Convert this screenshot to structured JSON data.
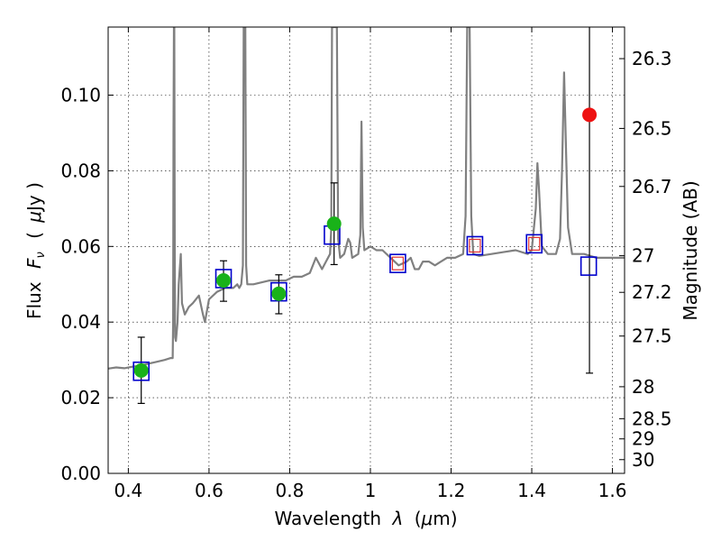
{
  "chart_data": {
    "type": "scatter",
    "xlabel_text": "Wavelength",
    "xlabel_symbol": "λ",
    "xlabel_unit_pre": "(",
    "xlabel_unit_mu": "μ",
    "xlabel_unit_post": "m)",
    "ylabel_text": "Flux",
    "ylabel_symbol": "F",
    "ylabel_sub": "ν",
    "ylabel_unit_pre": "(",
    "ylabel_unit_mu": "μ",
    "ylabel_unit_post": "Jy )",
    "y2label": "Magnitude (AB)",
    "xlim": [
      0.35,
      1.63
    ],
    "ylim": [
      0.0,
      0.118
    ],
    "grid": true,
    "x_ticks": [
      {
        "value": 0.4,
        "label": "0.4"
      },
      {
        "value": 0.6,
        "label": "0.6"
      },
      {
        "value": 0.8,
        "label": "0.8"
      },
      {
        "value": 1.0,
        "label": "1"
      },
      {
        "value": 1.2,
        "label": "1.2"
      },
      {
        "value": 1.4,
        "label": "1.4"
      },
      {
        "value": 1.6,
        "label": "1.6"
      }
    ],
    "y_ticks": [
      {
        "value": 0.0,
        "label": "0.00"
      },
      {
        "value": 0.02,
        "label": "0.02"
      },
      {
        "value": 0.04,
        "label": "0.04"
      },
      {
        "value": 0.06,
        "label": "0.06"
      },
      {
        "value": 0.08,
        "label": "0.08"
      },
      {
        "value": 0.1,
        "label": "0.10"
      }
    ],
    "y2_ticks": [
      {
        "value": 26.3,
        "label": "26.3"
      },
      {
        "value": 26.5,
        "label": "26.5"
      },
      {
        "value": 26.7,
        "label": "26.7"
      },
      {
        "value": 27.0,
        "label": "27"
      },
      {
        "value": 27.2,
        "label": "27.2"
      },
      {
        "value": 27.5,
        "label": "27.5"
      },
      {
        "value": 28.0,
        "label": "28"
      },
      {
        "value": 28.5,
        "label": "28.5"
      },
      {
        "value": 29.0,
        "label": "29"
      },
      {
        "value": 30.0,
        "label": "30"
      }
    ],
    "model_spectrum": {
      "color": "#808080",
      "points": [
        [
          0.35,
          0.0277
        ],
        [
          0.37,
          0.028
        ],
        [
          0.39,
          0.0278
        ],
        [
          0.41,
          0.0282
        ],
        [
          0.43,
          0.0285
        ],
        [
          0.45,
          0.029
        ],
        [
          0.47,
          0.0295
        ],
        [
          0.49,
          0.03
        ],
        [
          0.505,
          0.0305
        ],
        [
          0.51,
          0.0305
        ],
        [
          0.511,
          0.04
        ],
        [
          0.512,
          0.09
        ],
        [
          0.513,
          0.118
        ],
        [
          0.514,
          0.118
        ],
        [
          0.515,
          0.06
        ],
        [
          0.516,
          0.036
        ],
        [
          0.518,
          0.035
        ],
        [
          0.522,
          0.04
        ],
        [
          0.525,
          0.05
        ],
        [
          0.53,
          0.058
        ],
        [
          0.533,
          0.045
        ],
        [
          0.54,
          0.042
        ],
        [
          0.55,
          0.044
        ],
        [
          0.56,
          0.045
        ],
        [
          0.575,
          0.047
        ],
        [
          0.585,
          0.042
        ],
        [
          0.59,
          0.04
        ],
        [
          0.6,
          0.046
        ],
        [
          0.62,
          0.048
        ],
        [
          0.64,
          0.049
        ],
        [
          0.66,
          0.049
        ],
        [
          0.67,
          0.05
        ],
        [
          0.675,
          0.049
        ],
        [
          0.68,
          0.05
        ],
        [
          0.684,
          0.055
        ],
        [
          0.686,
          0.118
        ],
        [
          0.69,
          0.118
        ],
        [
          0.692,
          0.055
        ],
        [
          0.695,
          0.05
        ],
        [
          0.71,
          0.05
        ],
        [
          0.73,
          0.0505
        ],
        [
          0.75,
          0.051
        ],
        [
          0.77,
          0.051
        ],
        [
          0.79,
          0.051
        ],
        [
          0.81,
          0.052
        ],
        [
          0.83,
          0.052
        ],
        [
          0.85,
          0.053
        ],
        [
          0.865,
          0.057
        ],
        [
          0.87,
          0.056
        ],
        [
          0.88,
          0.054
        ],
        [
          0.89,
          0.056
        ],
        [
          0.9,
          0.058
        ],
        [
          0.903,
          0.065
        ],
        [
          0.905,
          0.118
        ],
        [
          0.911,
          0.118
        ],
        [
          0.913,
          0.118
        ],
        [
          0.917,
          0.118
        ],
        [
          0.92,
          0.062
        ],
        [
          0.925,
          0.057
        ],
        [
          0.935,
          0.058
        ],
        [
          0.945,
          0.062
        ],
        [
          0.95,
          0.061
        ],
        [
          0.955,
          0.057
        ],
        [
          0.97,
          0.058
        ],
        [
          0.975,
          0.063
        ],
        [
          0.978,
          0.093
        ],
        [
          0.981,
          0.065
        ],
        [
          0.985,
          0.059
        ],
        [
          1.0,
          0.06
        ],
        [
          1.015,
          0.059
        ],
        [
          1.03,
          0.059
        ],
        [
          1.05,
          0.057
        ],
        [
          1.07,
          0.055
        ],
        [
          1.09,
          0.056
        ],
        [
          1.1,
          0.057
        ],
        [
          1.11,
          0.054
        ],
        [
          1.12,
          0.054
        ],
        [
          1.13,
          0.056
        ],
        [
          1.145,
          0.056
        ],
        [
          1.16,
          0.055
        ],
        [
          1.175,
          0.056
        ],
        [
          1.19,
          0.057
        ],
        [
          1.21,
          0.057
        ],
        [
          1.23,
          0.058
        ],
        [
          1.236,
          0.068
        ],
        [
          1.24,
          0.118
        ],
        [
          1.246,
          0.118
        ],
        [
          1.25,
          0.068
        ],
        [
          1.255,
          0.058
        ],
        [
          1.27,
          0.0575
        ],
        [
          1.3,
          0.058
        ],
        [
          1.33,
          0.0585
        ],
        [
          1.36,
          0.059
        ],
        [
          1.39,
          0.058
        ],
        [
          1.4,
          0.059
        ],
        [
          1.41,
          0.07
        ],
        [
          1.414,
          0.082
        ],
        [
          1.418,
          0.075
        ],
        [
          1.425,
          0.06
        ],
        [
          1.44,
          0.058
        ],
        [
          1.46,
          0.058
        ],
        [
          1.47,
          0.062
        ],
        [
          1.475,
          0.08
        ],
        [
          1.48,
          0.106
        ],
        [
          1.485,
          0.085
        ],
        [
          1.49,
          0.065
        ],
        [
          1.5,
          0.058
        ],
        [
          1.53,
          0.058
        ],
        [
          1.56,
          0.057
        ],
        [
          1.59,
          0.057
        ],
        [
          1.63,
          0.057
        ]
      ]
    },
    "model_photometry": {
      "color": "#0000cc",
      "points": [
        [
          0.432,
          0.027
        ],
        [
          0.636,
          0.0515
        ],
        [
          0.773,
          0.048
        ],
        [
          0.905,
          0.063
        ],
        [
          1.068,
          0.0555
        ],
        [
          1.259,
          0.0602
        ],
        [
          1.406,
          0.0607
        ],
        [
          1.541,
          0.0548
        ]
      ]
    },
    "nir_inner_markers": {
      "color": "#e03030",
      "points": [
        [
          1.068,
          0.0555
        ],
        [
          1.259,
          0.0602
        ],
        [
          1.406,
          0.0607
        ]
      ]
    },
    "observed_detections": {
      "color": "#19b219",
      "points": [
        {
          "x": 0.432,
          "y": 0.0272,
          "err_low": 0.0185,
          "err_high": 0.036
        },
        {
          "x": 0.636,
          "y": 0.051,
          "err_low": 0.0455,
          "err_high": 0.0562
        },
        {
          "x": 0.773,
          "y": 0.0475,
          "err_low": 0.0422,
          "err_high": 0.0525
        },
        {
          "x": 0.91,
          "y": 0.066,
          "err_low": 0.0552,
          "err_high": 0.0768
        }
      ]
    },
    "observed_outlier": {
      "color": "#ee1111",
      "points": [
        {
          "x": 1.543,
          "y": 0.0948,
          "err_low": 0.0265,
          "err_high": 0.118
        }
      ]
    }
  }
}
